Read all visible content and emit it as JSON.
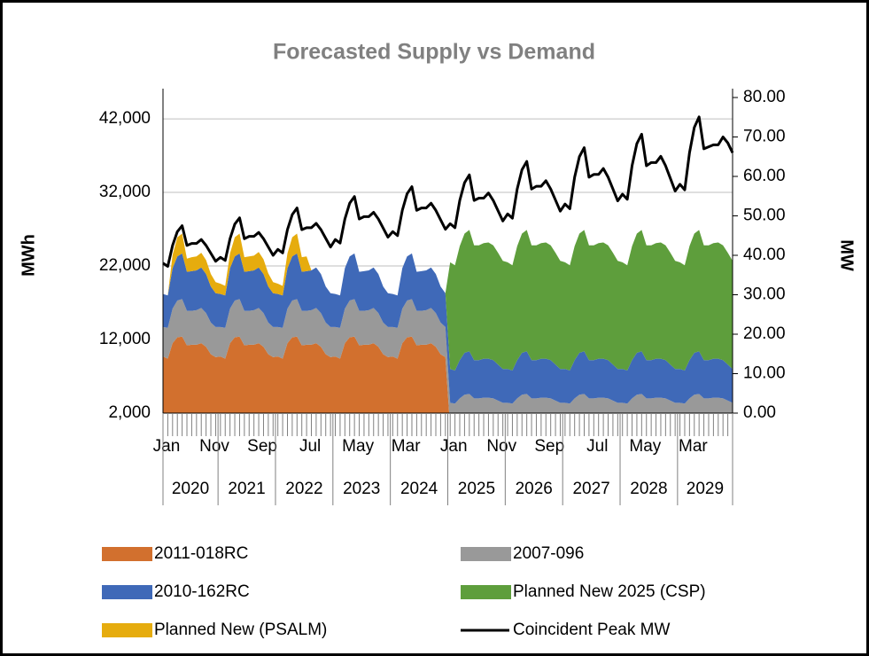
{
  "chart_data": {
    "type": "area",
    "title": "Forecasted Supply vs Demand",
    "ylabel": "MWh",
    "y2label": "MW",
    "categories": [
      "Jan",
      null,
      null,
      null,
      null,
      null,
      null,
      null,
      null,
      null,
      "Nov",
      null,
      null,
      null,
      null,
      null,
      null,
      null,
      null,
      null,
      "Sep",
      null,
      null,
      null,
      null,
      null,
      null,
      null,
      null,
      null,
      "Jul",
      null,
      null,
      null,
      null,
      null,
      null,
      null,
      null,
      null,
      "May",
      null,
      null,
      null,
      null,
      null,
      null,
      null,
      null,
      null,
      "Mar",
      null,
      null,
      null,
      null,
      null,
      null,
      null,
      null,
      null,
      "Jan",
      null,
      null,
      null,
      null,
      null,
      null,
      null,
      null,
      null,
      "Nov",
      null,
      null,
      null,
      null,
      null,
      null,
      null,
      null,
      null,
      "Sep",
      null,
      null,
      null,
      null,
      null,
      null,
      null,
      null,
      null,
      "Jul",
      null,
      null,
      null,
      null,
      null,
      null,
      null,
      null,
      null,
      "May",
      null,
      null,
      null,
      null,
      null,
      null,
      null,
      null,
      null,
      "Mar",
      null,
      null,
      null,
      null,
      null,
      null,
      null,
      null,
      null
    ],
    "years": [
      "2020",
      "2021",
      "2022",
      "2023",
      "2024",
      "2025",
      "2026",
      "2027",
      "2028",
      "2029"
    ],
    "ylim": [
      2000,
      44900
    ],
    "yticks": [
      {
        "value": 2000,
        "label": "2,000"
      },
      {
        "value": 12000,
        "label": "12,000"
      },
      {
        "value": 22000,
        "label": "22,000"
      },
      {
        "value": 32000,
        "label": "32,000"
      },
      {
        "value": 42000,
        "label": "42,000"
      }
    ],
    "y2lim": [
      0,
      80
    ],
    "y2ticks": [
      {
        "value": 0,
        "label": "0.00"
      },
      {
        "value": 10,
        "label": "10.00"
      },
      {
        "value": 20,
        "label": "20.00"
      },
      {
        "value": 30,
        "label": "30.00"
      },
      {
        "value": 40,
        "label": "40.00"
      },
      {
        "value": 50,
        "label": "50.00"
      },
      {
        "value": 60,
        "label": "60.00"
      },
      {
        "value": 70,
        "label": "70.00"
      },
      {
        "value": 80,
        "label": "80.00"
      }
    ],
    "grid": true,
    "legend": "bottom",
    "series": [
      {
        "name": "2011-018RC",
        "color": "#d2702e",
        "values": [
          9700,
          9400,
          11500,
          12300,
          12400,
          11200,
          11300,
          11300,
          11500,
          11000,
          10000,
          9600,
          9700,
          9400,
          11500,
          12300,
          12400,
          11200,
          11300,
          11300,
          11500,
          11000,
          10000,
          9600,
          9700,
          9400,
          11500,
          12300,
          12400,
          11200,
          11300,
          11300,
          11500,
          11000,
          10000,
          9600,
          9700,
          9400,
          11500,
          12300,
          12400,
          11200,
          11300,
          11300,
          11500,
          11000,
          10000,
          9600,
          9700,
          9400,
          11500,
          12300,
          12400,
          11200,
          11300,
          11300,
          11500,
          11000,
          10000,
          9600,
          0,
          0,
          0,
          0,
          0,
          0,
          0,
          0,
          0,
          0,
          0,
          0,
          0,
          0,
          0,
          0,
          0,
          0,
          0,
          0,
          0,
          0,
          0,
          0,
          0,
          0,
          0,
          0,
          0,
          0,
          0,
          0,
          0,
          0,
          0,
          0,
          0,
          0,
          0,
          0,
          0,
          0,
          0,
          0,
          0,
          0,
          0,
          0,
          0,
          0,
          0,
          0,
          0,
          0,
          0,
          0,
          0,
          0,
          0,
          0
        ]
      },
      {
        "name": "2007-096",
        "color": "#999999",
        "values": [
          4000,
          4200,
          4700,
          5000,
          5100,
          4700,
          4600,
          4700,
          4800,
          4600,
          4300,
          4100,
          4000,
          4200,
          4700,
          5000,
          5100,
          4700,
          4600,
          4700,
          4800,
          4600,
          4300,
          4100,
          4000,
          4200,
          4700,
          5000,
          5100,
          4700,
          4600,
          4700,
          4800,
          4600,
          4300,
          4100,
          4000,
          4200,
          4700,
          5000,
          5100,
          4700,
          4600,
          4700,
          4800,
          4600,
          4300,
          4100,
          4000,
          4200,
          4700,
          5000,
          5100,
          4700,
          4600,
          4700,
          4800,
          4600,
          4300,
          4100,
          3400,
          3300,
          4000,
          4500,
          4600,
          4000,
          4000,
          4100,
          4100,
          4000,
          3700,
          3400,
          3400,
          3300,
          4000,
          4500,
          4600,
          4000,
          4000,
          4100,
          4100,
          4000,
          3700,
          3400,
          3400,
          3300,
          4000,
          4500,
          4600,
          4000,
          4000,
          4100,
          4100,
          4000,
          3700,
          3400,
          3400,
          3300,
          4000,
          4500,
          4600,
          4000,
          4000,
          4100,
          4100,
          4000,
          3700,
          3400,
          3400,
          3300,
          4000,
          4500,
          4600,
          4000,
          4000,
          4100,
          4100,
          4000,
          3700,
          3400
        ]
      },
      {
        "name": "2010-162RC",
        "color": "#3f69b8",
        "values": [
          4500,
          4400,
          5500,
          6000,
          6200,
          5300,
          5400,
          5400,
          5500,
          5300,
          4900,
          4600,
          4500,
          4400,
          5500,
          6000,
          6200,
          5300,
          5400,
          5400,
          5500,
          5300,
          4900,
          4600,
          4500,
          4400,
          5500,
          6000,
          6200,
          5300,
          5400,
          5400,
          5500,
          5300,
          4900,
          4600,
          4500,
          4400,
          5500,
          6000,
          6200,
          5300,
          5400,
          5400,
          5500,
          5300,
          4900,
          4600,
          4500,
          4400,
          5500,
          6000,
          6200,
          5300,
          5400,
          5400,
          5500,
          5300,
          4900,
          4600,
          4600,
          4500,
          5200,
          5700,
          5800,
          5200,
          5200,
          5300,
          5300,
          5200,
          4900,
          4600,
          4600,
          4500,
          5200,
          5700,
          5800,
          5200,
          5200,
          5300,
          5300,
          5200,
          4900,
          4600,
          4600,
          4500,
          5200,
          5700,
          5800,
          5200,
          5200,
          5300,
          5300,
          5200,
          4900,
          4600,
          4600,
          4500,
          5200,
          5700,
          5800,
          5200,
          5200,
          5300,
          5300,
          5200,
          4900,
          4600,
          4600,
          4500,
          5200,
          5700,
          5800,
          5200,
          5200,
          5300,
          5300,
          5200,
          4900,
          4600
        ]
      },
      {
        "name": "Planned New (PSALM)",
        "color": "#e6ac0e",
        "values": [
          0,
          0,
          1800,
          2600,
          2700,
          1800,
          1900,
          1900,
          2000,
          1900,
          1700,
          1500,
          1400,
          1300,
          2000,
          2600,
          2700,
          2000,
          2000,
          2000,
          2100,
          2000,
          1800,
          1500,
          1400,
          1300,
          2000,
          2600,
          2700,
          2000,
          2000,
          0,
          0,
          0,
          0,
          0,
          0,
          0,
          0,
          0,
          0,
          0,
          0,
          0,
          0,
          0,
          0,
          0,
          0,
          0,
          0,
          0,
          0,
          0,
          0,
          0,
          0,
          0,
          0,
          0,
          0,
          0,
          0,
          0,
          0,
          0,
          0,
          0,
          0,
          0,
          0,
          0,
          0,
          0,
          0,
          0,
          0,
          0,
          0,
          0,
          0,
          0,
          0,
          0,
          0,
          0,
          0,
          0,
          0,
          0,
          0,
          0,
          0,
          0,
          0,
          0,
          0,
          0,
          0,
          0,
          0,
          0,
          0,
          0,
          0,
          0,
          0,
          0,
          0,
          0,
          0,
          0,
          0,
          0,
          0,
          0,
          0,
          0,
          0,
          0
        ]
      },
      {
        "name": "Planned New 2025 (CSP)",
        "color": "#5e9e3c",
        "values": [
          0,
          0,
          0,
          0,
          0,
          0,
          0,
          0,
          0,
          0,
          0,
          0,
          0,
          0,
          0,
          0,
          0,
          0,
          0,
          0,
          0,
          0,
          0,
          0,
          0,
          0,
          0,
          0,
          0,
          0,
          0,
          0,
          0,
          0,
          0,
          0,
          0,
          0,
          0,
          0,
          0,
          0,
          0,
          0,
          0,
          0,
          0,
          0,
          0,
          0,
          0,
          0,
          0,
          0,
          0,
          0,
          0,
          0,
          0,
          0,
          14500,
          14300,
          15500,
          16200,
          16500,
          15600,
          15600,
          15700,
          15800,
          15600,
          15200,
          14700,
          14500,
          14300,
          15500,
          16200,
          16500,
          15600,
          15600,
          15700,
          15800,
          15600,
          15200,
          14700,
          14500,
          14300,
          15500,
          16200,
          16500,
          15600,
          15600,
          15700,
          15800,
          15600,
          15200,
          14700,
          14500,
          14300,
          15500,
          16200,
          16500,
          15600,
          15600,
          15700,
          15800,
          15600,
          15200,
          14700,
          14500,
          14300,
          15500,
          16200,
          16500,
          15600,
          15600,
          15700,
          15800,
          15600,
          15200,
          14700
        ]
      },
      {
        "name": "Coincident Peak MW",
        "color": "#000000",
        "axis": "y2",
        "values": [
          38,
          37.2,
          42.5,
          46,
          47.5,
          42.5,
          43,
          43,
          44,
          42.5,
          40.5,
          38.5,
          39.5,
          38.7,
          44.2,
          47.9,
          49.5,
          44.2,
          44.8,
          44.8,
          45.8,
          44.2,
          42.1,
          40,
          41.5,
          40.6,
          46.5,
          50.3,
          52,
          46.5,
          47,
          47,
          48.1,
          46.5,
          44.3,
          42.1,
          44,
          43.1,
          49.2,
          53.2,
          54.9,
          49.2,
          49.8,
          49.8,
          50.9,
          49.2,
          46.9,
          44.6,
          46,
          45,
          51.4,
          55.6,
          57.4,
          51.4,
          52,
          52,
          53.2,
          51.4,
          49,
          46.6,
          48,
          47,
          53.9,
          58.4,
          60.4,
          53.9,
          54.5,
          54.5,
          55.8,
          53.9,
          51.3,
          48.7,
          50.5,
          49.4,
          56.8,
          61.7,
          63.8,
          56.8,
          57.5,
          57.5,
          58.9,
          56.8,
          54,
          51.2,
          53,
          51.8,
          59.8,
          65,
          67.3,
          59.8,
          60.5,
          60.5,
          62,
          59.8,
          56.8,
          53.8,
          55.5,
          54.2,
          62.7,
          68.3,
          70.7,
          62.7,
          63.5,
          63.5,
          65.1,
          62.7,
          59.5,
          56.3,
          58,
          56.6,
          66,
          72.4,
          75.1,
          67,
          67.5,
          68,
          68,
          70,
          68.5,
          66
        ]
      }
    ]
  }
}
